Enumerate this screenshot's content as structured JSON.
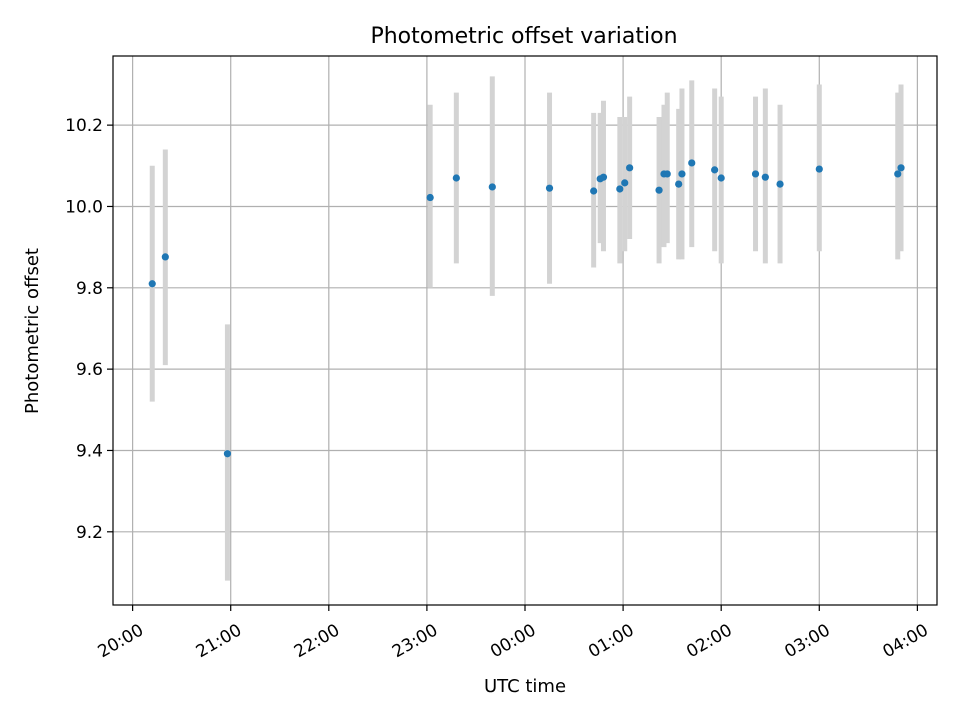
{
  "chart_data": {
    "type": "scatter",
    "title": "Photometric offset variation",
    "xlabel": "UTC time",
    "ylabel": "Photometric offset",
    "x_unit": "UTC time (h, 20:00 on first night to 04:00 next morning)",
    "xlim": [
      "19:48",
      "04:12"
    ],
    "ylim": [
      9.02,
      10.37
    ],
    "x_ticks": [
      {
        "t": "20:00",
        "label": "20:00"
      },
      {
        "t": "21:00",
        "label": "21:00"
      },
      {
        "t": "22:00",
        "label": "22:00"
      },
      {
        "t": "23:00",
        "label": "23:00"
      },
      {
        "t": "00:00",
        "label": "00:00"
      },
      {
        "t": "01:00",
        "label": "01:00"
      },
      {
        "t": "02:00",
        "label": "02:00"
      },
      {
        "t": "03:00",
        "label": "03:00"
      },
      {
        "t": "04:00",
        "label": "04:00"
      }
    ],
    "y_ticks": [
      {
        "v": 9.2,
        "label": "9.2"
      },
      {
        "v": 9.4,
        "label": "9.4"
      },
      {
        "v": 9.6,
        "label": "9.6"
      },
      {
        "v": 9.8,
        "label": "9.8"
      },
      {
        "v": 10.0,
        "label": "10.0"
      },
      {
        "v": 10.2,
        "label": "10.2"
      }
    ],
    "grid": true,
    "marker_color": "#1f77b4",
    "errorbar_color": "#d3d3d3",
    "points": [
      {
        "t": "20:12",
        "y": 9.81,
        "lo": 9.52,
        "hi": 10.1
      },
      {
        "t": "20:20",
        "y": 9.876,
        "lo": 9.61,
        "hi": 10.14
      },
      {
        "t": "20:58",
        "y": 9.392,
        "lo": 9.08,
        "hi": 9.71
      },
      {
        "t": "23:02",
        "y": 10.022,
        "lo": 9.8,
        "hi": 10.25
      },
      {
        "t": "23:18",
        "y": 10.07,
        "lo": 9.86,
        "hi": 10.28
      },
      {
        "t": "23:40",
        "y": 10.048,
        "lo": 9.78,
        "hi": 10.32
      },
      {
        "t": "00:15",
        "y": 10.045,
        "lo": 9.81,
        "hi": 10.28
      },
      {
        "t": "00:42",
        "y": 10.038,
        "lo": 9.85,
        "hi": 10.23
      },
      {
        "t": "00:46",
        "y": 10.068,
        "lo": 9.91,
        "hi": 10.23
      },
      {
        "t": "00:48",
        "y": 10.072,
        "lo": 9.89,
        "hi": 10.26
      },
      {
        "t": "00:58",
        "y": 10.043,
        "lo": 9.86,
        "hi": 10.22
      },
      {
        "t": "01:01",
        "y": 10.058,
        "lo": 9.89,
        "hi": 10.22
      },
      {
        "t": "01:04",
        "y": 10.095,
        "lo": 9.92,
        "hi": 10.27
      },
      {
        "t": "01:22",
        "y": 10.04,
        "lo": 9.86,
        "hi": 10.22
      },
      {
        "t": "01:25",
        "y": 10.08,
        "lo": 9.9,
        "hi": 10.25
      },
      {
        "t": "01:27",
        "y": 10.08,
        "lo": 9.91,
        "hi": 10.28
      },
      {
        "t": "01:34",
        "y": 10.055,
        "lo": 9.87,
        "hi": 10.24
      },
      {
        "t": "01:36",
        "y": 10.08,
        "lo": 9.87,
        "hi": 10.29
      },
      {
        "t": "01:42",
        "y": 10.107,
        "lo": 9.9,
        "hi": 10.31
      },
      {
        "t": "01:56",
        "y": 10.09,
        "lo": 9.89,
        "hi": 10.29
      },
      {
        "t": "02:00",
        "y": 10.07,
        "lo": 9.86,
        "hi": 10.27
      },
      {
        "t": "02:21",
        "y": 10.08,
        "lo": 9.89,
        "hi": 10.27
      },
      {
        "t": "02:27",
        "y": 10.072,
        "lo": 9.86,
        "hi": 10.29
      },
      {
        "t": "02:36",
        "y": 10.055,
        "lo": 9.86,
        "hi": 10.25
      },
      {
        "t": "03:00",
        "y": 10.092,
        "lo": 9.89,
        "hi": 10.3
      },
      {
        "t": "03:48",
        "y": 10.08,
        "lo": 9.87,
        "hi": 10.28
      },
      {
        "t": "03:50",
        "y": 10.095,
        "lo": 9.89,
        "hi": 10.3
      }
    ]
  }
}
